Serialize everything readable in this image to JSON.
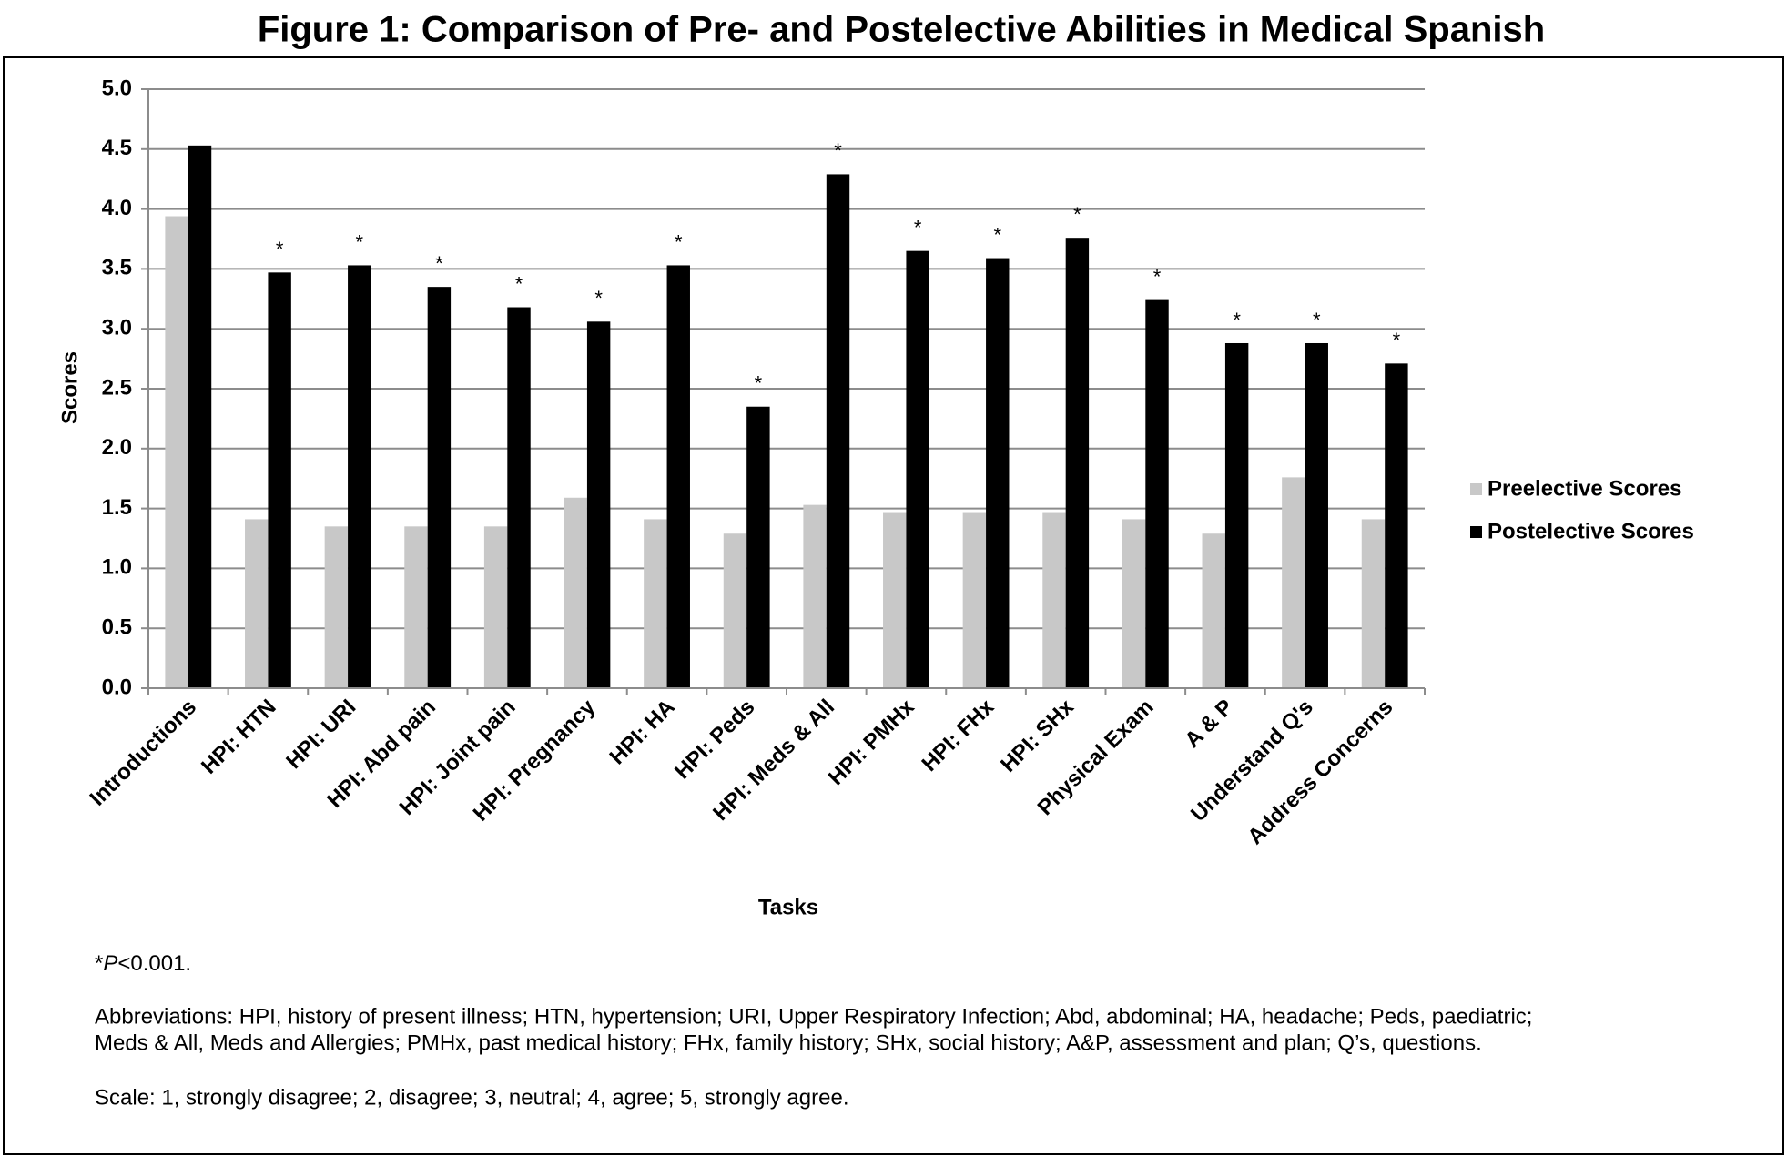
{
  "chart_data": {
    "type": "bar",
    "title": "Figure 1: Comparison of Pre- and Postelective Abilities in Medical Spanish",
    "x_label": "Tasks",
    "y_label": "Scores",
    "categories": [
      "Introductions",
      "HPI: HTN",
      "HPI: URI",
      "HPI: Abd pain",
      "HPI: Joint pain",
      "HPI: Pregnancy",
      "HPI: HA",
      "HPI: Peds",
      "HPI: Meds & All",
      "HPI: PMHx",
      "HPI: FHx",
      "HPI: SHx",
      "Physical Exam",
      "A & P",
      "Understand Q's",
      "Address Concerns"
    ],
    "series": [
      {
        "name": "Preelective Scores",
        "color": "#c8c8c8",
        "values": [
          3.94,
          1.41,
          1.35,
          1.35,
          1.35,
          1.59,
          1.41,
          1.29,
          1.53,
          1.47,
          1.47,
          1.47,
          1.41,
          1.29,
          1.76,
          1.41
        ]
      },
      {
        "name": "Postelective Scores",
        "color": "#000000",
        "values": [
          4.53,
          3.47,
          3.53,
          3.35,
          3.18,
          3.06,
          3.53,
          2.35,
          4.29,
          3.65,
          3.59,
          3.76,
          3.24,
          2.88,
          2.88,
          2.71
        ]
      }
    ],
    "significance": [
      null,
      "*",
      "*",
      "*",
      "*",
      "*",
      "*",
      "*",
      "*",
      "*",
      "*",
      "*",
      "*",
      "*",
      "*",
      "*"
    ],
    "ylim": [
      0,
      5
    ],
    "yticks": [
      {
        "value": 0,
        "label": "0.0"
      },
      {
        "value": 0.5,
        "label": "0.5"
      },
      {
        "value": 1,
        "label": "1.0"
      },
      {
        "value": 1.5,
        "label": "1.5"
      },
      {
        "value": 2,
        "label": "2.0"
      },
      {
        "value": 2.5,
        "label": "2.5"
      },
      {
        "value": 3,
        "label": "3.0"
      },
      {
        "value": 3.5,
        "label": "3.5"
      },
      {
        "value": 4,
        "label": "4.0"
      },
      {
        "value": 4.5,
        "label": "4.5"
      },
      {
        "value": 5,
        "label": "5.0"
      }
    ],
    "grid": true,
    "legend": "right",
    "notes": {
      "significance": [
        "*",
        "P",
        "<0.001."
      ],
      "abbreviations": [
        "Abbreviations: HPI, history of present illness; HTN, hypertension; URI, Upper Respiratory Infection; Abd, abdominal; HA, headache; Peds, paediatric;",
        "Meds & All, Meds and Allergies; PMHx, past medical history; FHx, family history; SHx, social history; A&P, assessment and plan; Q’s, questions."
      ],
      "scale": "Scale: 1, strongly disagree; 2, disagree; 3, neutral; 4, agree; 5, strongly agree."
    }
  }
}
